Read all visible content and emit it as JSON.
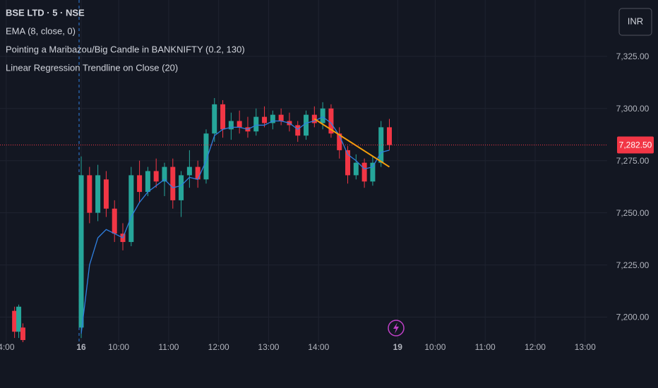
{
  "chart_data": {
    "type": "candlestick",
    "legend": [
      "BSE LTD · 5 · NSE",
      "EMA (8, close, 0)",
      "Pointing a Maribazou/Big Candle in BANKNIFTY (0.2, 130)",
      "Linear Regression Trendline on Close (20)"
    ],
    "currency": "INR",
    "xlim": [
      -19.5,
      126.3
    ],
    "xticks": [
      {
        "value": -18,
        "label": "4:00"
      },
      {
        "value": 0,
        "label": "16"
      },
      {
        "value": 9,
        "label": "10:00"
      },
      {
        "value": 21,
        "label": "11:00"
      },
      {
        "value": 33,
        "label": "12:00"
      },
      {
        "value": 45,
        "label": "13:00"
      },
      {
        "value": 57,
        "label": "14:00"
      },
      {
        "value": 76,
        "label": "19"
      },
      {
        "value": 85,
        "label": "10:00"
      },
      {
        "value": 97,
        "label": "11:00"
      },
      {
        "value": 109,
        "label": "12:00"
      },
      {
        "value": 121,
        "label": "13:00"
      }
    ],
    "ylim": [
      7188,
      7352
    ],
    "yticks": [
      {
        "value": 7200,
        "label": "7,200.00"
      },
      {
        "value": 7225,
        "label": "7,225.00"
      },
      {
        "value": 7250,
        "label": "7,250.00"
      },
      {
        "value": 7275,
        "label": "7,275.00"
      },
      {
        "value": 7300,
        "label": "7,300.00"
      },
      {
        "value": 7325,
        "label": "7,325.00"
      }
    ],
    "grid": true,
    "last_price": {
      "value": 7282.5,
      "label": "7,282.50",
      "color": "#f23645"
    },
    "series": [
      {
        "type": "candlestick",
        "up_color": "#26a69a",
        "down_color": "#f23645",
        "x": [
          -16,
          -15,
          -14,
          0,
          2,
          4,
          6,
          8,
          10,
          12,
          14,
          16,
          18,
          20,
          22,
          24,
          26,
          28,
          30,
          32,
          34,
          36,
          38,
          40,
          42,
          44,
          46,
          48,
          50,
          52,
          54,
          56,
          58,
          60,
          62,
          64,
          66,
          68,
          70,
          72,
          74
        ],
        "ohlc": [
          [
            7203,
            7205,
            7190,
            7193
          ],
          [
            7193,
            7206,
            7190,
            7205
          ],
          [
            7195,
            7197,
            7188,
            7189
          ],
          [
            7195,
            7277,
            7190,
            7268
          ],
          [
            7268,
            7272,
            7245,
            7250
          ],
          [
            7250,
            7273,
            7246,
            7268
          ],
          [
            7266,
            7270,
            7248,
            7252
          ],
          [
            7252,
            7256,
            7236,
            7240
          ],
          [
            7240,
            7245,
            7232,
            7236
          ],
          [
            7236,
            7272,
            7234,
            7268
          ],
          [
            7268,
            7275,
            7255,
            7260
          ],
          [
            7260,
            7272,
            7258,
            7270
          ],
          [
            7270,
            7276,
            7262,
            7265
          ],
          [
            7265,
            7274,
            7258,
            7272
          ],
          [
            7272,
            7276,
            7252,
            7256
          ],
          [
            7256,
            7270,
            7248,
            7268
          ],
          [
            7268,
            7280,
            7262,
            7272
          ],
          [
            7272,
            7275,
            7262,
            7266
          ],
          [
            7266,
            7290,
            7264,
            7288
          ],
          [
            7288,
            7305,
            7284,
            7302
          ],
          [
            7302,
            7304,
            7286,
            7290
          ],
          [
            7290,
            7298,
            7285,
            7294
          ],
          [
            7294,
            7299,
            7288,
            7291
          ],
          [
            7291,
            7296,
            7286,
            7289
          ],
          [
            7289,
            7300,
            7287,
            7296
          ],
          [
            7296,
            7301,
            7291,
            7293
          ],
          [
            7293,
            7299,
            7290,
            7297
          ],
          [
            7297,
            7300,
            7292,
            7294
          ],
          [
            7294,
            7298,
            7289,
            7292
          ],
          [
            7292,
            7294,
            7284,
            7287
          ],
          [
            7287,
            7299,
            7285,
            7297
          ],
          [
            7297,
            7301,
            7291,
            7293
          ],
          [
            7293,
            7303,
            7290,
            7300
          ],
          [
            7300,
            7302,
            7286,
            7288
          ],
          [
            7288,
            7291,
            7276,
            7280
          ],
          [
            7280,
            7282,
            7264,
            7268
          ],
          [
            7268,
            7278,
            7266,
            7274
          ],
          [
            7274,
            7276,
            7262,
            7265
          ],
          [
            7265,
            7277,
            7263,
            7274
          ],
          [
            7274,
            7294,
            7272,
            7291
          ],
          [
            7291,
            7295,
            7280,
            7282.5
          ]
        ]
      },
      {
        "type": "line",
        "color": "#2f7fe0",
        "x": [
          0,
          2,
          4,
          6,
          8,
          10,
          12,
          14,
          16,
          18,
          20,
          22,
          24,
          26,
          28,
          30,
          32,
          34,
          36,
          38,
          40,
          42,
          44,
          46,
          48,
          50,
          52,
          54,
          56,
          58,
          60,
          62,
          64,
          66,
          68,
          70,
          72,
          74
        ],
        "values": [
          7192,
          7225,
          7238,
          7242,
          7240,
          7238,
          7248,
          7255,
          7260,
          7263,
          7266,
          7262,
          7263,
          7267,
          7266,
          7275,
          7287,
          7290,
          7291,
          7291,
          7290,
          7292,
          7292,
          7294,
          7294,
          7293,
          7290,
          7293,
          7294,
          7296,
          7293,
          7287,
          7278,
          7275,
          7271,
          7272,
          7279,
          7280
        ]
      },
      {
        "type": "line",
        "color": "#f59e0b",
        "x": [
          56,
          74
        ],
        "values": [
          7295,
          7272
        ]
      }
    ]
  }
}
